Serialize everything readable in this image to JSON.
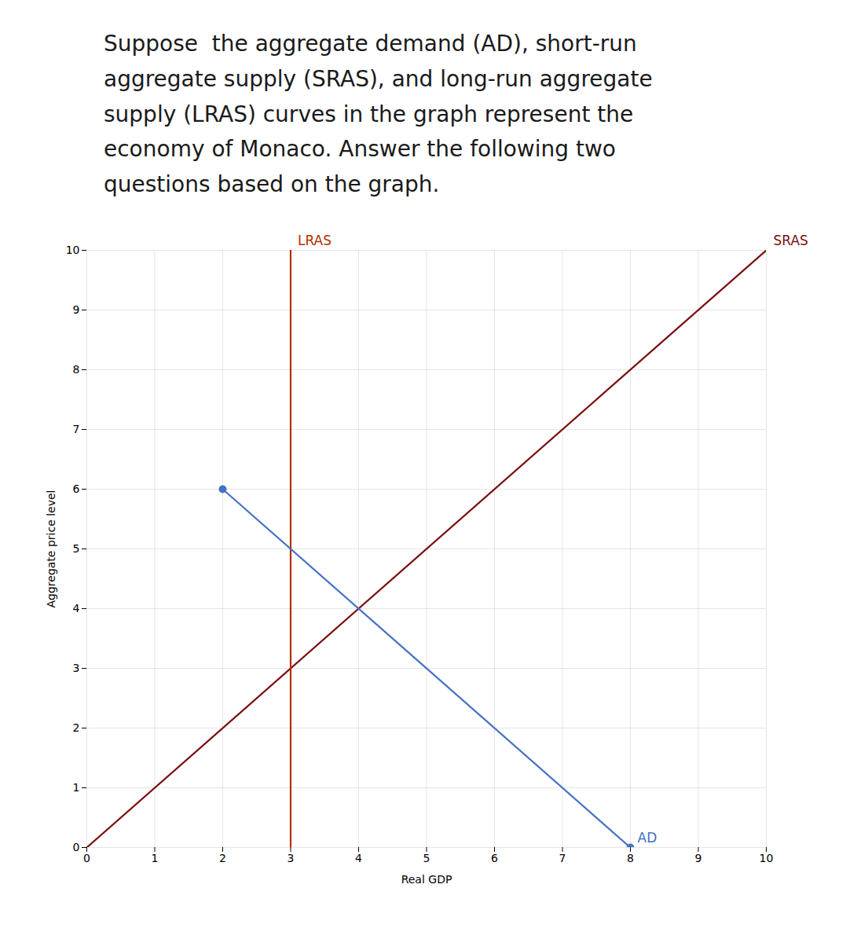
{
  "chart_data": {
    "type": "line",
    "title": "Suppose  the aggregate demand (AD), short-run\naggregate supply (SRAS), and long-run aggregate\nsupply (LRAS) curves in the graph represent the\neconomy of Monaco. Answer the following two\nquestions based on the graph.",
    "xlabel": "Real GDP",
    "ylabel": "Aggregate price level",
    "xlim": [
      0,
      10
    ],
    "ylim": [
      0,
      10
    ],
    "xticks": [
      0,
      1,
      2,
      3,
      4,
      5,
      6,
      7,
      8,
      9,
      10
    ],
    "yticks": [
      0,
      1,
      2,
      3,
      4,
      5,
      6,
      7,
      8,
      9,
      10
    ],
    "grid": true,
    "series": [
      {
        "name": "SRAS",
        "color": "#7B1010",
        "x": [
          0,
          10
        ],
        "values": [
          0,
          10
        ]
      },
      {
        "name": "LRAS",
        "color": "#B03000",
        "x": [
          3,
          3
        ],
        "values": [
          0,
          10
        ]
      },
      {
        "name": "AD",
        "color": "#4472C4",
        "x": [
          2,
          8
        ],
        "values": [
          6,
          0
        ],
        "marker": "circle"
      }
    ]
  }
}
